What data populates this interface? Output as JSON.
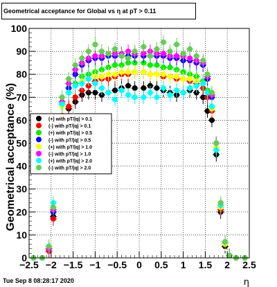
{
  "title": "Geometrical acceptance for Global vs  η at pT > 0.11",
  "timestamp": "Tue Sep  8 08:28:17 2020",
  "chart_data": {
    "type": "scatter",
    "title": "Geometrical acceptance for Global vs  η at pT > 0.11",
    "xlabel": "η",
    "ylabel": "Geometrical acceptance (%)",
    "xlim": [
      -2.5,
      2.5
    ],
    "ylim": [
      0,
      100
    ],
    "xticks": [
      -2.5,
      -2,
      -1.5,
      -1,
      -0.5,
      0,
      0.5,
      1,
      1.5,
      2,
      2.5
    ],
    "xtick_labels": [
      "−2.5",
      "−2",
      "−1.5",
      "−1",
      "−0.5",
      "0",
      "0.5",
      "1",
      "1.5",
      "2",
      "2.5"
    ],
    "yticks": [
      0,
      10,
      20,
      30,
      40,
      50,
      60,
      70,
      80,
      90,
      100
    ],
    "grid": true,
    "legend_position": "left",
    "series": [
      {
        "name": "(+) with pT/|q| > 0.1",
        "color": "#000000",
        "x": [
          -2.4,
          -2.2,
          -2.05,
          -1.95,
          -1.85,
          -1.75,
          -1.6,
          -1.45,
          -1.3,
          -1.15,
          -1.0,
          -0.85,
          -0.7,
          -0.55,
          -0.4,
          -0.25,
          -0.1,
          0.1,
          0.25,
          0.4,
          0.55,
          0.7,
          0.85,
          1.0,
          1.15,
          1.3,
          1.45,
          1.55,
          1.65,
          1.75,
          1.85,
          1.95,
          2.05,
          2.2,
          2.4
        ],
        "y": [
          0,
          0,
          3,
          18,
          45,
          60,
          65,
          68,
          71,
          72,
          72,
          71,
          72,
          73,
          74,
          75,
          74,
          74,
          75,
          74,
          73,
          72,
          71,
          72,
          73,
          72,
          70,
          64,
          60,
          45,
          20,
          5,
          1,
          0,
          0
        ]
      },
      {
        "name": "(-) with pT/|q| > 0.1",
        "color": "#ff0000",
        "x": [
          -2.4,
          -2.2,
          -2.05,
          -1.95,
          -1.85,
          -1.75,
          -1.6,
          -1.45,
          -1.3,
          -1.15,
          -1.0,
          -0.85,
          -0.7,
          -0.55,
          -0.4,
          -0.25,
          -0.1,
          0.1,
          0.25,
          0.4,
          0.55,
          0.7,
          0.85,
          1.0,
          1.15,
          1.3,
          1.45,
          1.55,
          1.65,
          1.75,
          1.85,
          1.95,
          2.05,
          2.2,
          2.4
        ],
        "y": [
          0,
          0,
          3,
          17,
          44,
          62,
          66,
          70,
          73,
          75,
          77,
          78,
          78,
          79,
          80,
          80,
          81,
          81,
          80,
          80,
          79,
          79,
          78,
          78,
          77,
          76,
          74,
          70,
          64,
          47,
          21,
          6,
          1,
          0,
          0
        ]
      },
      {
        "name": "(+) with pT/|q| > 0.5",
        "color": "#00ee00",
        "x": [
          -2.4,
          -2.2,
          -2.05,
          -1.95,
          -1.85,
          -1.75,
          -1.6,
          -1.45,
          -1.3,
          -1.15,
          -1.0,
          -0.85,
          -0.7,
          -0.55,
          -0.4,
          -0.25,
          -0.1,
          0.1,
          0.25,
          0.4,
          0.55,
          0.7,
          0.85,
          1.0,
          1.15,
          1.3,
          1.45,
          1.55,
          1.65,
          1.75,
          1.85,
          1.95,
          2.05,
          2.2,
          2.4
        ],
        "y": [
          0,
          0,
          4,
          20,
          48,
          66,
          72,
          76,
          79,
          80,
          81,
          82,
          83,
          84,
          84,
          85,
          85,
          85,
          84,
          84,
          83,
          83,
          82,
          81,
          80,
          79,
          77,
          73,
          66,
          48,
          22,
          6,
          1,
          0,
          0
        ]
      },
      {
        "name": "(-) with pT/|q| > 0.5",
        "color": "#0000ff",
        "x": [
          -2.4,
          -2.2,
          -2.05,
          -1.95,
          -1.85,
          -1.75,
          -1.6,
          -1.45,
          -1.3,
          -1.15,
          -1.0,
          -0.85,
          -0.7,
          -0.55,
          -0.4,
          -0.25,
          -0.1,
          0.1,
          0.25,
          0.4,
          0.55,
          0.7,
          0.85,
          1.0,
          1.15,
          1.3,
          1.45,
          1.55,
          1.65,
          1.75,
          1.85,
          1.95,
          2.05,
          2.2,
          2.4
        ],
        "y": [
          0,
          0,
          4,
          20,
          48,
          67,
          74,
          80,
          84,
          86,
          87,
          87,
          88,
          88,
          88,
          88,
          88,
          88,
          88,
          88,
          88,
          87,
          87,
          86,
          86,
          85,
          84,
          78,
          70,
          50,
          22,
          6,
          1,
          0,
          0
        ]
      },
      {
        "name": "(+) with pT/|q| > 1.0",
        "color": "#ffff00",
        "x": [
          -2.4,
          -2.2,
          -2.05,
          -1.95,
          -1.85,
          -1.75,
          -1.6,
          -1.45,
          -1.3,
          -1.15,
          -1.0,
          -0.85,
          -0.7,
          -0.55,
          -0.4,
          -0.25,
          -0.1,
          0.1,
          0.25,
          0.4,
          0.55,
          0.7,
          0.85,
          1.0,
          1.15,
          1.3,
          1.45,
          1.55,
          1.65,
          1.75,
          1.85,
          1.95,
          2.05,
          2.2,
          2.4
        ],
        "y": [
          0,
          0,
          4,
          21,
          49,
          66,
          72,
          75,
          77,
          78,
          79,
          79,
          80,
          80,
          81,
          81,
          81,
          81,
          80,
          80,
          80,
          79,
          79,
          78,
          78,
          77,
          76,
          72,
          65,
          48,
          22,
          6,
          1,
          0,
          0
        ]
      },
      {
        "name": "(-) with pT/|q| > 1.0",
        "color": "#ff00ff",
        "x": [
          -2.4,
          -2.2,
          -2.05,
          -1.95,
          -1.85,
          -1.75,
          -1.6,
          -1.45,
          -1.3,
          -1.15,
          -1.0,
          -0.85,
          -0.7,
          -0.55,
          -0.4,
          -0.25,
          -0.1,
          0.1,
          0.25,
          0.4,
          0.55,
          0.7,
          0.85,
          1.0,
          1.15,
          1.3,
          1.45,
          1.55,
          1.65,
          1.75,
          1.85,
          1.95,
          2.05,
          2.2,
          2.4
        ],
        "y": [
          0,
          0,
          4,
          21,
          50,
          68,
          76,
          82,
          85,
          87,
          88,
          88,
          89,
          89,
          89,
          90,
          89,
          89,
          90,
          89,
          89,
          88,
          88,
          88,
          87,
          86,
          85,
          79,
          71,
          50,
          23,
          7,
          1,
          0,
          0
        ]
      },
      {
        "name": "(+) with pT/|q| > 2.0",
        "color": "#00ffff",
        "x": [
          -2.4,
          -2.2,
          -2.05,
          -1.95,
          -1.85,
          -1.75,
          -1.6,
          -1.45,
          -1.3,
          -1.15,
          -1.0,
          -0.85,
          -0.7,
          -0.55,
          -0.4,
          -0.25,
          -0.1,
          0.1,
          0.25,
          0.4,
          0.55,
          0.7,
          0.85,
          1.0,
          1.15,
          1.3,
          1.45,
          1.55,
          1.65,
          1.75,
          1.85,
          1.95,
          2.05,
          2.2,
          2.4
        ],
        "y": [
          0,
          0,
          5,
          24,
          50,
          67,
          72,
          75,
          76,
          78,
          76,
          74,
          72,
          69,
          73,
          71,
          70,
          70,
          72,
          70,
          74,
          71,
          73,
          72,
          74,
          75,
          76,
          72,
          66,
          47,
          23,
          7,
          1,
          0,
          0
        ]
      },
      {
        "name": "(-) with pT/|q| > 2.0",
        "color": "#66cc55",
        "x": [
          -2.4,
          -2.2,
          -2.05,
          -1.95,
          -1.85,
          -1.75,
          -1.6,
          -1.45,
          -1.3,
          -1.15,
          -1.0,
          -0.85,
          -0.7,
          -0.55,
          -0.4,
          -0.25,
          -0.1,
          0.1,
          0.25,
          0.4,
          0.55,
          0.7,
          0.85,
          1.0,
          1.15,
          1.3,
          1.45,
          1.55,
          1.65,
          1.75,
          1.85,
          1.95,
          2.05,
          2.2,
          2.4
        ],
        "y": [
          0,
          0,
          5,
          22,
          50,
          70,
          78,
          84,
          87,
          90,
          93,
          90,
          89,
          91,
          88,
          87,
          90,
          92,
          88,
          91,
          94,
          90,
          93,
          89,
          91,
          88,
          86,
          80,
          72,
          50,
          24,
          7,
          1,
          0,
          0
        ]
      }
    ]
  }
}
